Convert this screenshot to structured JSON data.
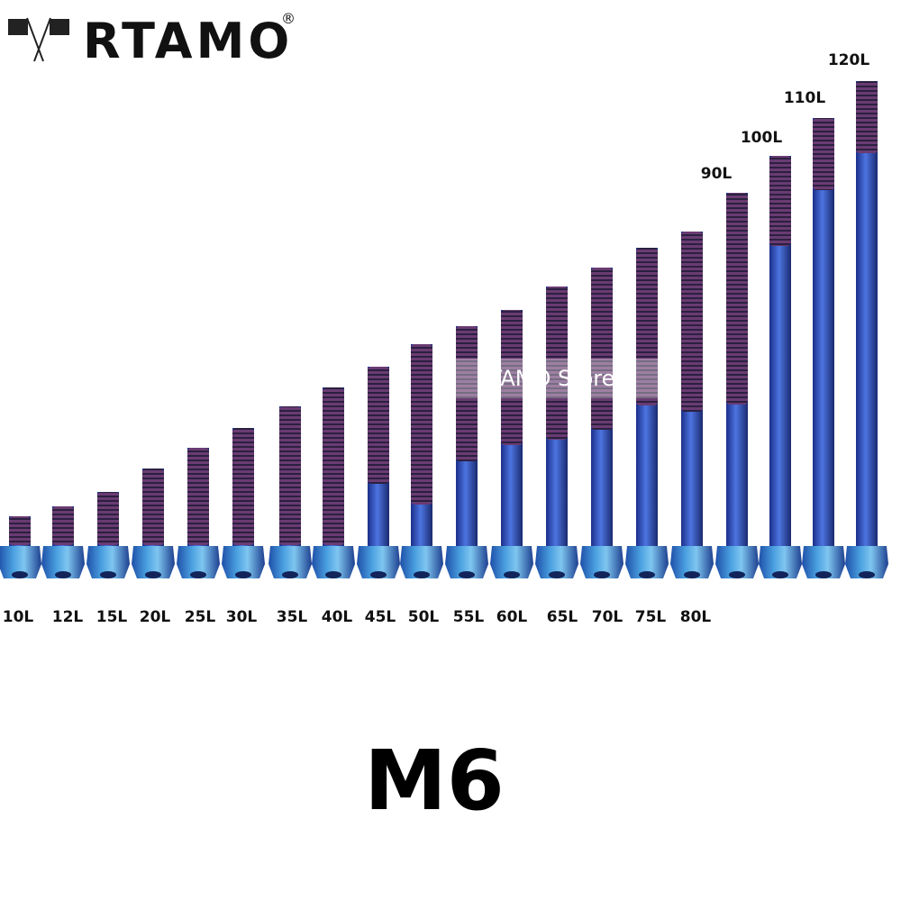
{
  "brand": "RTAMO",
  "registered": "®",
  "watermark": "RTAMO Store",
  "size": "M6",
  "bolts": [
    "10L",
    "12L",
    "15L",
    "20L",
    "25L",
    "30L",
    "35L",
    "40L",
    "45L",
    "50L",
    "55L",
    "60L",
    "65L",
    "70L",
    "75L",
    "80L",
    "90L",
    "100L",
    "110L",
    "120L"
  ]
}
